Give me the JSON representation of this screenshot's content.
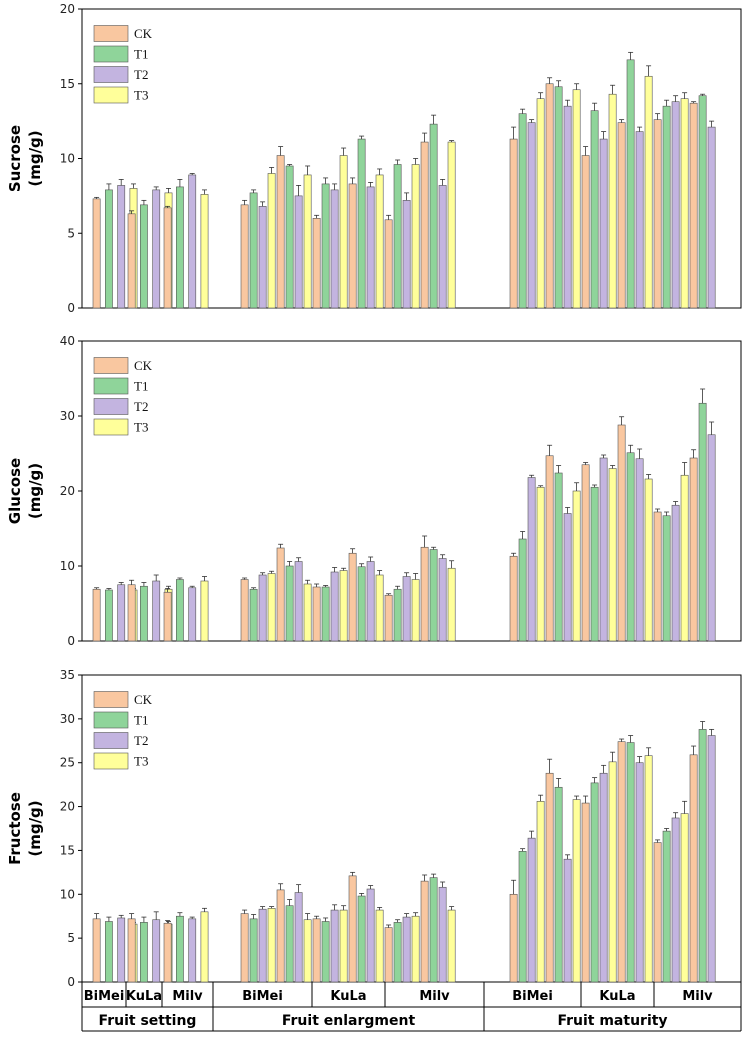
{
  "colors": {
    "CK": "#F9C7A0",
    "T1": "#8FD49A",
    "T2": "#C3B4E0",
    "T3": "#FFFF9A",
    "stroke": "#555555",
    "axis": "#000000"
  },
  "x_axis": {
    "varieties": [
      "BiMei",
      "KuLa",
      "Milv",
      "BiMei",
      "KuLa",
      "Milv",
      "BiMei",
      "KuLa",
      "Milv"
    ],
    "stages": [
      "Fruit setting",
      "Fruit enlargment",
      "Fruit maturity"
    ]
  },
  "chart_data": [
    {
      "type": "bar",
      "ylabel": [
        "Sucrose",
        "(mg/g)"
      ],
      "ylim": [
        0,
        20
      ],
      "yticks": [
        0,
        5,
        10,
        15,
        20
      ],
      "legend_position": "top-left",
      "series": [
        {
          "name": "CK"
        },
        {
          "name": "T1"
        },
        {
          "name": "T2"
        },
        {
          "name": "T3"
        }
      ],
      "values": [
        [
          [
            7.3,
            7.9,
            8.2,
            8.0
          ],
          [
            6.3,
            6.9,
            7.9,
            7.7
          ],
          [
            6.7,
            8.1,
            8.9,
            7.6
          ]
        ],
        [
          [
            6.9,
            7.7,
            6.8,
            9.0,
            10.2,
            9.5,
            7.5,
            8.9
          ],
          [
            6.0,
            8.3,
            7.9,
            10.2,
            8.3,
            11.3,
            8.1,
            8.9
          ],
          [
            5.9,
            9.6,
            7.2,
            9.6,
            11.1,
            12.3,
            8.2,
            11.1
          ]
        ],
        [
          [
            11.3,
            13.0,
            12.4,
            14.0,
            15.0,
            14.8,
            13.5,
            14.6
          ],
          [
            10.2,
            13.2,
            11.3,
            14.3,
            12.4,
            16.6,
            11.8,
            15.5
          ],
          [
            12.6,
            13.5,
            13.8,
            14.0,
            13.7,
            14.2,
            12.1
          ]
        ]
      ],
      "errors": [
        [
          [
            0.1,
            0.4,
            0.4,
            0.3
          ],
          [
            0.2,
            0.3,
            0.2,
            0.3
          ],
          [
            0.1,
            0.5,
            0.1,
            0.3
          ]
        ],
        [
          [
            0.3,
            0.2,
            0.3,
            0.4,
            0.6,
            0.1,
            0.7,
            0.6
          ],
          [
            0.2,
            0.4,
            0.4,
            0.5,
            0.4,
            0.2,
            0.3,
            0.4
          ],
          [
            0.3,
            0.3,
            0.5,
            0.4,
            0.6,
            0.6,
            0.4,
            0.1
          ]
        ],
        [
          [
            0.8,
            0.3,
            0.2,
            0.4,
            0.4,
            0.4,
            0.4,
            0.4
          ],
          [
            0.6,
            0.5,
            0.5,
            0.6,
            0.2,
            0.5,
            0.3,
            0.7
          ],
          [
            0.4,
            0.4,
            0.4,
            0.4,
            0.1,
            0.1,
            0.4
          ]
        ]
      ]
    },
    {
      "type": "bar",
      "ylabel": [
        "Glucose",
        "(mg/g)"
      ],
      "ylim": [
        0,
        40
      ],
      "yticks": [
        0,
        10,
        20,
        30,
        40
      ],
      "legend_position": "top-left",
      "series": [
        {
          "name": "CK"
        },
        {
          "name": "T1"
        },
        {
          "name": "T2"
        },
        {
          "name": "T3"
        }
      ],
      "values": [
        [
          [
            6.9,
            6.8,
            7.5,
            6.8
          ],
          [
            7.5,
            7.3,
            8.0,
            6.9
          ],
          [
            6.5,
            8.2,
            7.1,
            8.0
          ]
        ],
        [
          [
            8.2,
            6.9,
            8.8,
            9.0,
            12.4,
            10.0,
            10.6,
            7.6
          ],
          [
            7.2,
            7.2,
            9.2,
            9.4,
            11.7,
            9.9,
            10.6,
            8.8
          ],
          [
            6.1,
            6.9,
            8.6,
            8.2,
            12.5,
            12.2,
            11.0,
            9.7
          ]
        ],
        [
          [
            11.3,
            13.6,
            21.8,
            20.5,
            24.7,
            22.4,
            17.0,
            20.0
          ],
          [
            23.5,
            20.5,
            24.4,
            23.0,
            28.8,
            25.1,
            24.3,
            21.6
          ],
          [
            17.2,
            16.7,
            18.1,
            22.1,
            24.4,
            31.7,
            27.5
          ]
        ]
      ],
      "errors": [
        [
          [
            0.2,
            0.2,
            0.3,
            0.2
          ],
          [
            0.6,
            0.5,
            0.8,
            0.4
          ],
          [
            0.5,
            0.2,
            0.2,
            0.6
          ]
        ],
        [
          [
            0.2,
            0.2,
            0.3,
            0.3,
            0.5,
            0.6,
            0.5,
            0.5
          ],
          [
            0.4,
            0.2,
            0.6,
            0.3,
            0.6,
            0.4,
            0.6,
            0.6
          ],
          [
            0.2,
            0.4,
            0.5,
            0.8,
            1.5,
            0.3,
            0.5,
            1.0
          ]
        ],
        [
          [
            0.4,
            1.0,
            0.3,
            0.2,
            1.4,
            1.0,
            0.8,
            1.1
          ],
          [
            0.3,
            0.3,
            0.4,
            0.4,
            1.1,
            1.0,
            1.3,
            0.6
          ],
          [
            0.4,
            0.5,
            0.5,
            1.7,
            1.1,
            1.9,
            1.7
          ]
        ]
      ]
    },
    {
      "type": "bar",
      "ylabel": [
        "Fructose",
        "(mg/g)"
      ],
      "ylim": [
        0,
        35
      ],
      "yticks": [
        0,
        5,
        10,
        15,
        20,
        25,
        30,
        35
      ],
      "legend_position": "top-left",
      "series": [
        {
          "name": "CK"
        },
        {
          "name": "T1"
        },
        {
          "name": "T2"
        },
        {
          "name": "T3"
        }
      ],
      "values": [
        [
          [
            7.2,
            6.9,
            7.3,
            6.6
          ],
          [
            7.2,
            6.8,
            7.1,
            6.6
          ],
          [
            6.7,
            7.5,
            7.2,
            8.0
          ]
        ],
        [
          [
            7.8,
            7.2,
            8.3,
            8.4,
            10.5,
            8.7,
            10.2,
            7.1
          ],
          [
            7.2,
            6.9,
            8.2,
            8.2,
            12.1,
            9.8,
            10.6,
            8.2
          ],
          [
            6.2,
            6.8,
            7.4,
            7.5,
            11.5,
            11.9,
            10.8,
            8.2
          ]
        ],
        [
          [
            10.0,
            14.9,
            16.4,
            20.6,
            23.8,
            22.2,
            14.0,
            20.8
          ],
          [
            20.4,
            22.7,
            23.8,
            25.1,
            27.4,
            27.3,
            25.0,
            25.8
          ],
          [
            15.9,
            17.2,
            18.7,
            19.2,
            25.9,
            28.8,
            28.1
          ]
        ]
      ],
      "errors": [
        [
          [
            0.6,
            0.5,
            0.3,
            0.2
          ],
          [
            0.6,
            0.6,
            0.9,
            0.3
          ],
          [
            0.3,
            0.4,
            0.2,
            0.4
          ]
        ],
        [
          [
            0.4,
            0.5,
            0.3,
            0.2,
            0.7,
            0.7,
            0.9,
            0.7
          ],
          [
            0.3,
            0.4,
            0.6,
            0.5,
            0.4,
            0.3,
            0.4,
            0.3
          ],
          [
            0.3,
            0.3,
            0.4,
            0.4,
            0.7,
            0.4,
            0.6,
            0.4
          ]
        ],
        [
          [
            1.6,
            0.3,
            0.8,
            0.7,
            1.6,
            1.0,
            0.5,
            0.4
          ],
          [
            0.8,
            0.6,
            0.9,
            1.1,
            0.3,
            0.8,
            0.7,
            0.9
          ],
          [
            0.3,
            0.3,
            0.6,
            1.4,
            1.0,
            0.9,
            0.7
          ]
        ]
      ]
    }
  ]
}
